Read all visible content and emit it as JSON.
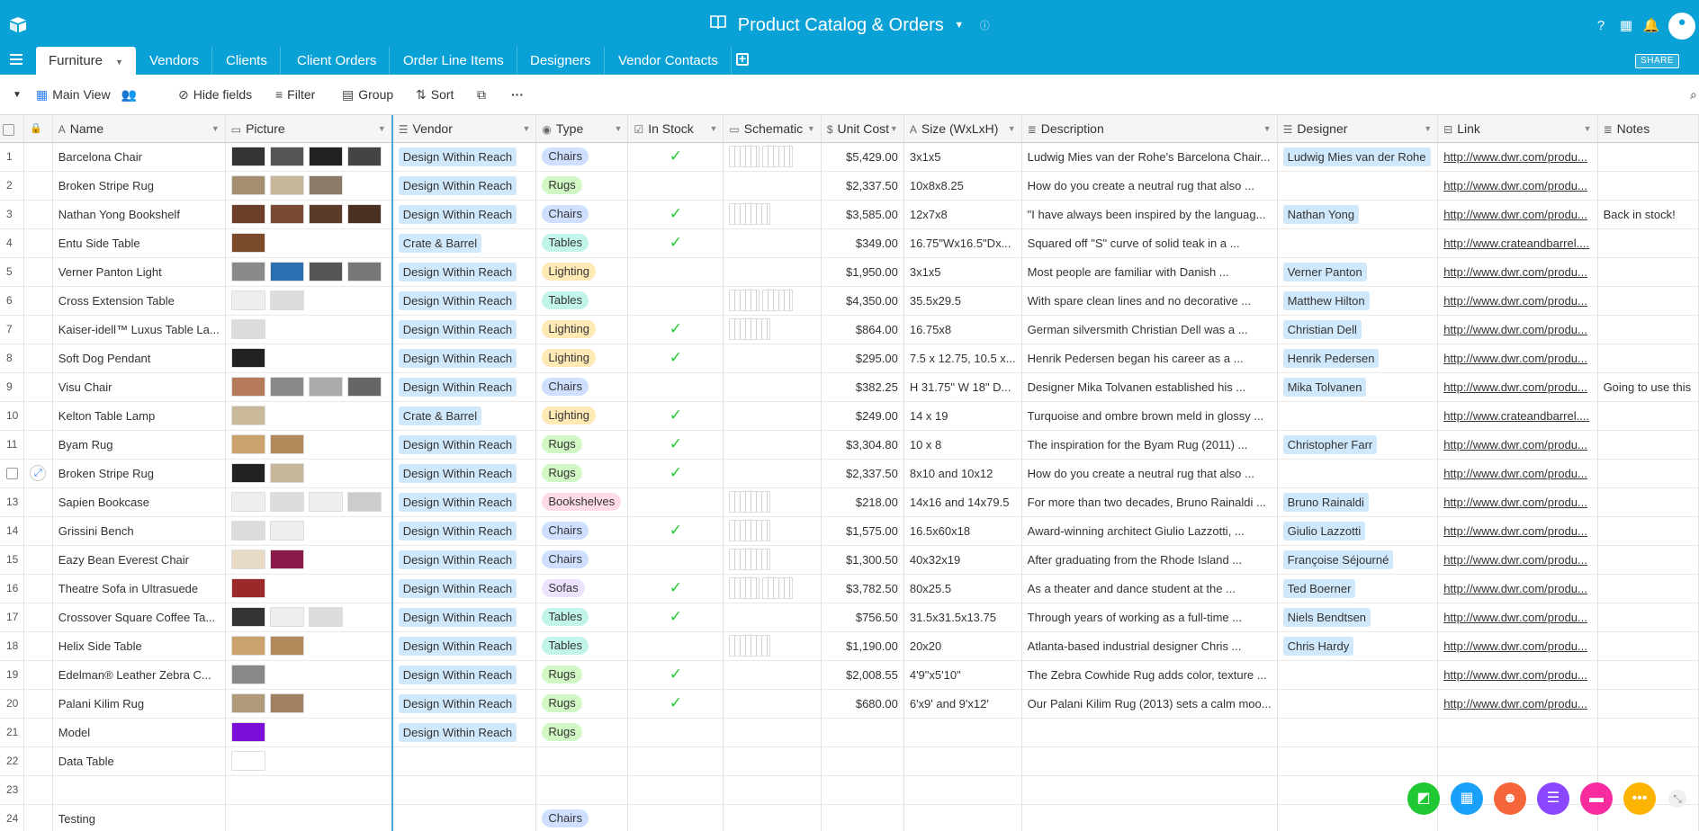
{
  "app": {
    "title": "Product Catalog & Orders",
    "share_label": "SHARE",
    "accent": "#0aa1d6"
  },
  "tabs": [
    {
      "label": "Furniture",
      "active": true
    },
    {
      "label": "Vendors"
    },
    {
      "label": "Clients"
    },
    {
      "label": "Client Orders"
    },
    {
      "label": "Order Line Items"
    },
    {
      "label": "Designers"
    },
    {
      "label": "Vendor Contacts"
    }
  ],
  "viewbar": {
    "view_name": "Main View",
    "hide_fields": "Hide fields",
    "filter": "Filter",
    "group": "Group",
    "sort": "Sort",
    "more": "···"
  },
  "columns": [
    "Name",
    "Picture",
    "Vendor",
    "Type",
    "In Stock",
    "Schematic",
    "Unit Cost",
    "Size (WxLxH)",
    "Description",
    "Designer",
    "Link",
    "Notes"
  ],
  "type_colors": {
    "Chairs": "#cfdfff",
    "Rugs": "#d1f7c4",
    "Tables": "#c2f5e9",
    "Lighting": "#ffeab6",
    "Bookshelves": "#ffdce5",
    "Sofas": "#ede2fe"
  },
  "rows": [
    {
      "n": "1",
      "name": "Barcelona Chair",
      "pics": [
        "#333",
        "#555",
        "#222",
        "#444"
      ],
      "vendor": "Design Within Reach",
      "type": "Chairs",
      "stock": true,
      "schem": 2,
      "cost": "$5,429.00",
      "size": "3x1x5",
      "desc": "Ludwig Mies van der Rohe's Barcelona Chair...",
      "designer": "Ludwig Mies van der Rohe",
      "link": "http://www.dwr.com/produ...",
      "notes": ""
    },
    {
      "n": "2",
      "name": "Broken Stripe Rug",
      "pics": [
        "#a58d6f",
        "#c7b79a",
        "#8a7a66"
      ],
      "vendor": "Design Within Reach",
      "type": "Rugs",
      "stock": false,
      "schem": 0,
      "cost": "$2,337.50",
      "size": "10x8x8.25",
      "desc": "How do you create a neutral rug that also ...",
      "designer": "",
      "link": "http://www.dwr.com/produ...",
      "notes": ""
    },
    {
      "n": "3",
      "name": "Nathan Yong Bookshelf",
      "pics": [
        "#6b3f2a",
        "#7a4b33",
        "#5a3a28",
        "#4a3020"
      ],
      "vendor": "Design Within Reach",
      "type": "Chairs",
      "stock": true,
      "schem": 1,
      "cost": "$3,585.00",
      "size": "12x7x8",
      "desc": "\"I have always been inspired by the languag...",
      "designer": "Nathan Yong",
      "link": "http://www.dwr.com/produ...",
      "notes": "Back in stock!"
    },
    {
      "n": "4",
      "name": "Entu Side Table",
      "pics": [
        "#7a4a2a"
      ],
      "vendor": "Crate & Barrel",
      "type": "Tables",
      "stock": true,
      "schem": 0,
      "cost": "$349.00",
      "size": "16.75\"Wx16.5\"Dx...",
      "desc": "Squared off \"S\" curve of solid teak in a ...",
      "designer": "",
      "link": "http://www.crateandbarrel....",
      "notes": ""
    },
    {
      "n": "5",
      "name": "Verner Panton Light",
      "pics": [
        "#8a8a8a",
        "#2a6fb0",
        "#555",
        "#777"
      ],
      "vendor": "Design Within Reach",
      "type": "Lighting",
      "stock": false,
      "schem": 0,
      "cost": "$1,950.00",
      "size": "3x1x5",
      "desc": "Most people are familiar with Danish ...",
      "designer": "Verner Panton",
      "link": "http://www.dwr.com/produ...",
      "notes": ""
    },
    {
      "n": "6",
      "name": "Cross Extension Table",
      "pics": [
        "#eee",
        "#ddd"
      ],
      "vendor": "Design Within Reach",
      "type": "Tables",
      "stock": false,
      "schem": 2,
      "cost": "$4,350.00",
      "size": "35.5x29.5",
      "desc": "With spare clean lines and no decorative ...",
      "designer": "Matthew Hilton",
      "link": "http://www.dwr.com/produ...",
      "notes": ""
    },
    {
      "n": "7",
      "name": "Kaiser-idell™ Luxus Table La...",
      "pics": [
        "#ddd"
      ],
      "vendor": "Design Within Reach",
      "type": "Lighting",
      "stock": true,
      "schem": 1,
      "cost": "$864.00",
      "size": "16.75x8",
      "desc": "German silversmith Christian Dell was a ...",
      "designer": "Christian Dell",
      "link": "http://www.dwr.com/produ...",
      "notes": ""
    },
    {
      "n": "8",
      "name": "Soft Dog Pendant",
      "pics": [
        "#222"
      ],
      "vendor": "Design Within Reach",
      "type": "Lighting",
      "stock": true,
      "schem": 0,
      "cost": "$295.00",
      "size": "7.5 x 12.75, 10.5 x...",
      "desc": "Henrik Pedersen began his career as a ...",
      "designer": "Henrik Pedersen",
      "link": "http://www.dwr.com/produ...",
      "notes": ""
    },
    {
      "n": "9",
      "name": "Visu Chair",
      "pics": [
        "#b57b5a",
        "#888",
        "#aaa",
        "#666"
      ],
      "vendor": "Design Within Reach",
      "type": "Chairs",
      "stock": false,
      "schem": 0,
      "cost": "$382.25",
      "size": "H 31.75\" W 18\" D...",
      "desc": "Designer Mika Tolvanen established his ...",
      "designer": "Mika Tolvanen",
      "link": "http://www.dwr.com/produ...",
      "notes": "Going to use this"
    },
    {
      "n": "10",
      "name": "Kelton Table Lamp",
      "pics": [
        "#c9b89a"
      ],
      "vendor": "Crate & Barrel",
      "type": "Lighting",
      "stock": true,
      "schem": 0,
      "cost": "$249.00",
      "size": "14 x 19",
      "desc": "Turquoise and ombre brown meld in glossy ...",
      "designer": "",
      "link": "http://www.crateandbarrel....",
      "notes": ""
    },
    {
      "n": "11",
      "name": "Byam Rug",
      "pics": [
        "#c9a36b",
        "#b08a5a"
      ],
      "vendor": "Design Within Reach",
      "type": "Rugs",
      "stock": true,
      "schem": 0,
      "cost": "$3,304.80",
      "size": "10 x 8",
      "desc": "The inspiration for the Byam Rug (2011) ...",
      "designer": "Christopher Farr",
      "link": "http://www.dwr.com/produ...",
      "notes": ""
    },
    {
      "n": "",
      "name": "Broken Stripe Rug",
      "pics": [
        "#222",
        "#c7b79a"
      ],
      "vendor": "Design Within Reach",
      "type": "Rugs",
      "stock": true,
      "schem": 0,
      "cost": "$2,337.50",
      "size": "8x10 and 10x12",
      "desc": "How do you create a neutral rug that also ...",
      "designer": "",
      "link": "http://www.dwr.com/produ...",
      "notes": ""
    },
    {
      "n": "13",
      "name": "Sapien Bookcase",
      "pics": [
        "#eee",
        "#ddd",
        "#eee",
        "#ccc"
      ],
      "vendor": "Design Within Reach",
      "type": "Bookshelves",
      "stock": false,
      "schem": 1,
      "cost": "$218.00",
      "size": "14x16 and 14x79.5",
      "desc": "For more than two decades, Bruno Rainaldi ...",
      "designer": "Bruno Rainaldi",
      "link": "http://www.dwr.com/produ...",
      "notes": ""
    },
    {
      "n": "14",
      "name": "Grissini Bench",
      "pics": [
        "#ddd",
        "#eee"
      ],
      "vendor": "Design Within Reach",
      "type": "Chairs",
      "stock": true,
      "schem": 1,
      "cost": "$1,575.00",
      "size": "16.5x60x18",
      "desc": "Award-winning architect Giulio Lazzotti, ...",
      "designer": "Giulio Lazzotti",
      "link": "http://www.dwr.com/produ...",
      "notes": ""
    },
    {
      "n": "15",
      "name": "Eazy Bean Everest Chair",
      "pics": [
        "#e8dcc8",
        "#8a1a4a"
      ],
      "vendor": "Design Within Reach",
      "type": "Chairs",
      "stock": false,
      "schem": 1,
      "cost": "$1,300.50",
      "size": "40x32x19",
      "desc": "After graduating from the Rhode Island ...",
      "designer": "Françoise Séjourné",
      "link": "http://www.dwr.com/produ...",
      "notes": ""
    },
    {
      "n": "16",
      "name": "Theatre Sofa in Ultrasuede",
      "pics": [
        "#9a2a2a"
      ],
      "vendor": "Design Within Reach",
      "type": "Sofas",
      "stock": true,
      "schem": 2,
      "cost": "$3,782.50",
      "size": "80x25.5",
      "desc": "As a theater and dance student at the ...",
      "designer": "Ted Boerner",
      "link": "http://www.dwr.com/produ...",
      "notes": ""
    },
    {
      "n": "17",
      "name": "Crossover Square Coffee Ta...",
      "pics": [
        "#333",
        "#eee",
        "#ddd"
      ],
      "vendor": "Design Within Reach",
      "type": "Tables",
      "stock": true,
      "schem": 0,
      "cost": "$756.50",
      "size": "31.5x31.5x13.75",
      "desc": "Through years of working as a full-time ...",
      "designer": "Niels Bendtsen",
      "link": "http://www.dwr.com/produ...",
      "notes": ""
    },
    {
      "n": "18",
      "name": "Helix Side Table",
      "pics": [
        "#c9a36b",
        "#b08a5a"
      ],
      "vendor": "Design Within Reach",
      "type": "Tables",
      "stock": false,
      "schem": 1,
      "cost": "$1,190.00",
      "size": "20x20",
      "desc": "Atlanta-based industrial designer Chris ...",
      "designer": "Chris Hardy",
      "link": "http://www.dwr.com/produ...",
      "notes": ""
    },
    {
      "n": "19",
      "name": "Edelman® Leather Zebra C...",
      "pics": [
        "#888"
      ],
      "vendor": "Design Within Reach",
      "type": "Rugs",
      "stock": true,
      "schem": 0,
      "cost": "$2,008.55",
      "size": "4'9\"x5'10\"",
      "desc": "The Zebra Cowhide Rug adds color, texture ...",
      "designer": "",
      "link": "http://www.dwr.com/produ...",
      "notes": ""
    },
    {
      "n": "20",
      "name": "Palani Kilim Rug",
      "pics": [
        "#b09a7a",
        "#a08060"
      ],
      "vendor": "Design Within Reach",
      "type": "Rugs",
      "stock": true,
      "schem": 0,
      "cost": "$680.00",
      "size": "6'x9' and 9'x12'",
      "desc": "Our Palani Kilim Rug (2013) sets a calm moo...",
      "designer": "",
      "link": "http://www.dwr.com/produ...",
      "notes": ""
    },
    {
      "n": "21",
      "name": "Model",
      "pics": [
        "#7a10d8"
      ],
      "vendor": "Design Within Reach",
      "type": "Rugs",
      "stock": false,
      "schem": 0,
      "cost": "",
      "size": "",
      "desc": "",
      "designer": "",
      "link": "",
      "notes": ""
    },
    {
      "n": "22",
      "name": "Data Table",
      "pics": [
        "#fff"
      ],
      "vendor": "",
      "type": "",
      "stock": false,
      "schem": 0,
      "cost": "",
      "size": "",
      "desc": "",
      "designer": "",
      "link": "",
      "notes": ""
    },
    {
      "n": "23",
      "name": "",
      "pics": [],
      "vendor": "",
      "type": "",
      "stock": false,
      "schem": 0,
      "cost": "",
      "size": "",
      "desc": "",
      "designer": "",
      "link": "",
      "notes": ""
    },
    {
      "n": "24",
      "name": "Testing",
      "pics": [],
      "vendor": "",
      "type": "Chairs",
      "stock": false,
      "schem": 0,
      "cost": "",
      "size": "",
      "desc": "",
      "designer": "",
      "link": "",
      "notes": ""
    }
  ],
  "collaborators": [
    {
      "icon": "sheet-app-icon",
      "color": "#20c933"
    },
    {
      "icon": "blocks-app-icon",
      "color": "#18a0fb"
    },
    {
      "icon": "user-app-icon",
      "color": "#f7653b"
    },
    {
      "icon": "list-app-icon",
      "color": "#8b46ff"
    },
    {
      "icon": "chat-app-icon",
      "color": "#f82b9f"
    },
    {
      "icon": "more-app-icon",
      "color": "#fcb400"
    }
  ]
}
